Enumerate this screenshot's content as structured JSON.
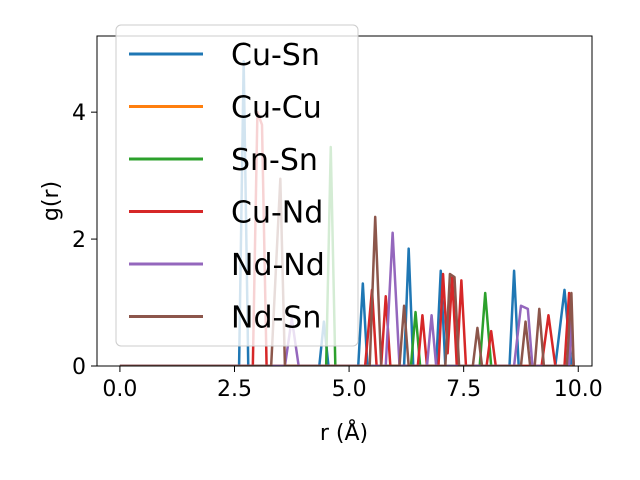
{
  "chart_data": {
    "type": "line",
    "xlabel": "r (Å)",
    "ylabel": "g(r)",
    "xlim": [
      -0.5,
      10.3
    ],
    "ylim": [
      0,
      5.2
    ],
    "xticks": [
      0.0,
      2.5,
      5.0,
      7.5,
      10.0
    ],
    "xtick_labels": [
      "0.0",
      "2.5",
      "5.0",
      "7.5",
      "10.0"
    ],
    "yticks": [
      0,
      2,
      4
    ],
    "ytick_labels": [
      "0",
      "2",
      "4"
    ],
    "grid": false,
    "legend_position": "upper-left",
    "series": [
      {
        "name": "Cu-Sn",
        "color": "#1f77b4",
        "points": [
          [
            0,
            0
          ],
          [
            2.6,
            0
          ],
          [
            2.7,
            4.8
          ],
          [
            2.8,
            0
          ],
          [
            4.35,
            0
          ],
          [
            4.45,
            0.7
          ],
          [
            4.55,
            0
          ],
          [
            5.2,
            0
          ],
          [
            5.3,
            1.3
          ],
          [
            5.4,
            0
          ],
          [
            6.2,
            0
          ],
          [
            6.3,
            1.85
          ],
          [
            6.4,
            0
          ],
          [
            6.9,
            0
          ],
          [
            7.0,
            1.5
          ],
          [
            7.1,
            0
          ],
          [
            8.5,
            0
          ],
          [
            8.6,
            1.5
          ],
          [
            8.7,
            0
          ],
          [
            9.5,
            0
          ],
          [
            9.7,
            1.2
          ],
          [
            9.85,
            0
          ]
        ]
      },
      {
        "name": "Cu-Cu",
        "color": "#ff7f0e",
        "points": [
          [
            0,
            0
          ],
          [
            9.9,
            0
          ]
        ]
      },
      {
        "name": "Sn-Sn",
        "color": "#2ca02c",
        "points": [
          [
            0,
            0
          ],
          [
            4.5,
            0
          ],
          [
            4.6,
            3.45
          ],
          [
            4.7,
            0
          ],
          [
            6.35,
            0
          ],
          [
            6.45,
            0.85
          ],
          [
            6.55,
            0
          ],
          [
            7.85,
            0
          ],
          [
            7.97,
            1.15
          ],
          [
            8.1,
            0
          ]
        ]
      },
      {
        "name": "Cu-Nd",
        "color": "#d62728",
        "points": [
          [
            0,
            0
          ],
          [
            2.9,
            0
          ],
          [
            3.0,
            4.0
          ],
          [
            3.1,
            3.8
          ],
          [
            3.2,
            0
          ],
          [
            5.35,
            0
          ],
          [
            5.5,
            1.2
          ],
          [
            5.6,
            0
          ],
          [
            5.7,
            0
          ],
          [
            5.8,
            1.1
          ],
          [
            5.9,
            0
          ],
          [
            6.5,
            0
          ],
          [
            6.6,
            0.8
          ],
          [
            6.7,
            0
          ],
          [
            6.95,
            0
          ],
          [
            7.05,
            1.45
          ],
          [
            7.15,
            0.2
          ],
          [
            7.25,
            1.4
          ],
          [
            7.35,
            0
          ],
          [
            7.45,
            1.35
          ],
          [
            7.55,
            0
          ],
          [
            8.0,
            0
          ],
          [
            8.1,
            0.55
          ],
          [
            8.2,
            0
          ],
          [
            9.2,
            0
          ],
          [
            9.35,
            0.8
          ],
          [
            9.5,
            0
          ],
          [
            9.7,
            0
          ],
          [
            9.8,
            1.15
          ],
          [
            9.9,
            0
          ]
        ]
      },
      {
        "name": "Nd-Nd",
        "color": "#9467bd",
        "points": [
          [
            0,
            0
          ],
          [
            3.6,
            0
          ],
          [
            3.75,
            0.75
          ],
          [
            3.9,
            0
          ],
          [
            5.8,
            0
          ],
          [
            5.95,
            2.1
          ],
          [
            6.1,
            0
          ],
          [
            6.7,
            0
          ],
          [
            6.8,
            0.8
          ],
          [
            6.9,
            0
          ],
          [
            8.6,
            0
          ],
          [
            8.75,
            0.95
          ],
          [
            8.9,
            0.9
          ],
          [
            9.0,
            0
          ],
          [
            9.8,
            0
          ],
          [
            9.85,
            0.75
          ],
          [
            9.9,
            0
          ]
        ]
      },
      {
        "name": "Nd-Sn",
        "color": "#8c564b",
        "points": [
          [
            0,
            0
          ],
          [
            3.3,
            0
          ],
          [
            3.5,
            2.95
          ],
          [
            3.6,
            0
          ],
          [
            5.45,
            0
          ],
          [
            5.57,
            2.35
          ],
          [
            5.7,
            0
          ],
          [
            6.1,
            0
          ],
          [
            6.2,
            0.95
          ],
          [
            6.3,
            0
          ],
          [
            7.1,
            0
          ],
          [
            7.2,
            1.45
          ],
          [
            7.3,
            1.4
          ],
          [
            7.4,
            0
          ],
          [
            7.7,
            0
          ],
          [
            7.8,
            0.6
          ],
          [
            7.9,
            0
          ],
          [
            8.75,
            0
          ],
          [
            8.85,
            0.7
          ],
          [
            8.95,
            0
          ],
          [
            9.05,
            0
          ],
          [
            9.15,
            0.9
          ],
          [
            9.25,
            0
          ],
          [
            9.75,
            0
          ],
          [
            9.85,
            1.15
          ],
          [
            9.9,
            0
          ]
        ]
      }
    ]
  }
}
